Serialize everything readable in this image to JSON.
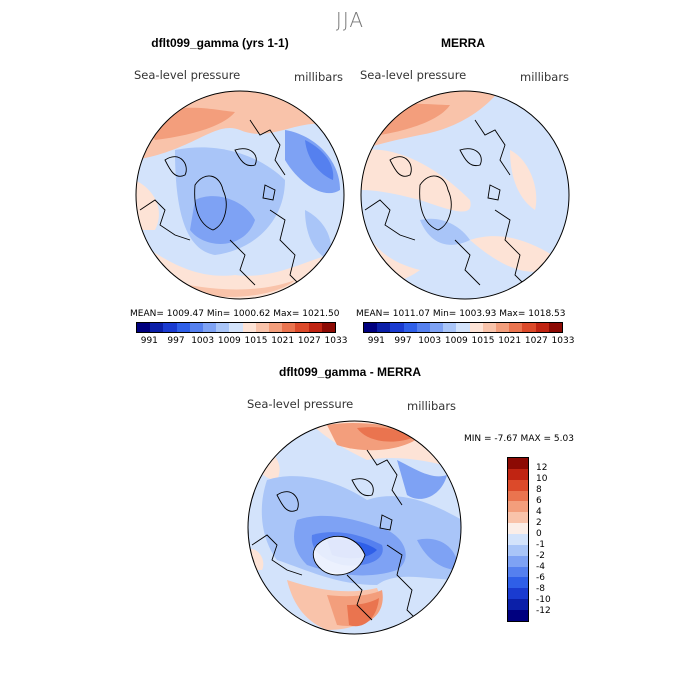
{
  "season": "JJA",
  "panels": {
    "model": {
      "title": "dflt099_gamma (yrs 1-1)",
      "variable": "Sea-level pressure",
      "units": "millibars",
      "stats": "MEAN= 1009.47   Min= 1000.62   Max= 1021.50"
    },
    "obs": {
      "title": "MERRA",
      "variable": "Sea-level pressure",
      "units": "millibars",
      "stats": "MEAN= 1011.07   Min= 1003.93   Max= 1018.53"
    },
    "diff": {
      "title": "dflt099_gamma - MERRA",
      "variable": "Sea-level pressure",
      "units": "millibars",
      "stats": "MIN =   -7.67  MAX =    5.03"
    }
  },
  "abs_colorbar": {
    "colors": [
      "#00007f",
      "#0b1fa8",
      "#1a3bd0",
      "#2f5fe8",
      "#5580ef",
      "#7ea2f4",
      "#a9c5f8",
      "#d3e3fb",
      "#fde3d6",
      "#f9c3aa",
      "#f39e7c",
      "#ea744f",
      "#dc4a2a",
      "#c02412",
      "#8c0a04"
    ],
    "labels": [
      "991",
      "997",
      "1003",
      "1009",
      "1015",
      "1021",
      "1027",
      "1033"
    ]
  },
  "diff_colorbar": {
    "colors": [
      "#00007f",
      "#0b1fa8",
      "#1a3bd0",
      "#2f5fe8",
      "#5580ef",
      "#7ea2f4",
      "#a9c5f8",
      "#d3e3fb",
      "#fbeee8",
      "#f9c3aa",
      "#f39e7c",
      "#ea744f",
      "#dc4a2a",
      "#c02412",
      "#8c0a04"
    ],
    "labels": [
      "12",
      "10",
      "8",
      "6",
      "4",
      "2",
      "0",
      "-1",
      "-2",
      "-4",
      "-6",
      "-8",
      "-10",
      "-12"
    ]
  },
  "map_colors": {
    "ocean_base": "#d3e3fb",
    "pale_blue": "#a9c5f8",
    "mid_blue": "#7ea2f4",
    "strong_blue": "#5580ef",
    "deep_blue": "#2f5fe8",
    "pale_red": "#fde3d6",
    "light_red": "#f9c3aa",
    "mid_red": "#f39e7c",
    "strong_red": "#ea744f",
    "white": "#ffffff"
  }
}
